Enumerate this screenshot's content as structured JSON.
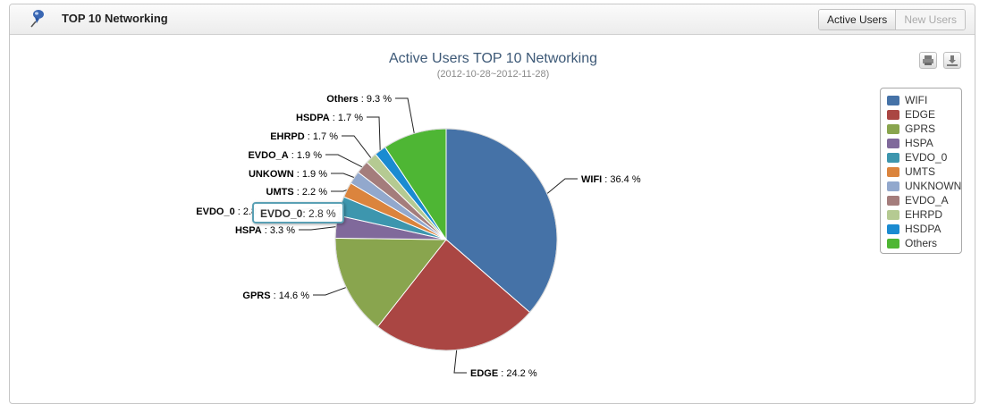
{
  "header": {
    "title": "TOP 10 Networking",
    "icon": "pushpin-icon"
  },
  "tabs": [
    {
      "label": "Active Users",
      "active": true
    },
    {
      "label": "New Users",
      "active": false
    }
  ],
  "toolbar": {
    "print_icon": "print-icon",
    "download_icon": "download-icon"
  },
  "chart_data": {
    "type": "pie",
    "title": "Active Users TOP 10 Networking",
    "subtitle": "(2012-10-28~2012-11-28)",
    "legend_position": "right",
    "slices": [
      {
        "name": "WIFI",
        "label": "WIFI",
        "value": 36.4,
        "color": "#4572a7"
      },
      {
        "name": "EDGE",
        "label": "EDGE",
        "value": 24.2,
        "color": "#aa4643"
      },
      {
        "name": "GPRS",
        "label": "GPRS",
        "value": 14.6,
        "color": "#89a54e"
      },
      {
        "name": "HSPA",
        "label": "HSPA",
        "value": 3.3,
        "color": "#80699b"
      },
      {
        "name": "EVDO_0",
        "label": "EVDO_0",
        "value": 2.8,
        "color": "#3d96ae"
      },
      {
        "name": "UMTS",
        "label": "UMTS",
        "value": 2.2,
        "color": "#db843d"
      },
      {
        "name": "UNKNOWN",
        "label": "UNKOWN",
        "value": 1.9,
        "color": "#92a8cd"
      },
      {
        "name": "EVDO_A",
        "label": "EVDO_A",
        "value": 1.9,
        "color": "#a47d7c"
      },
      {
        "name": "EHRPD",
        "label": "EHRPD",
        "value": 1.7,
        "color": "#b5ca92"
      },
      {
        "name": "HSDPA",
        "label": "HSDPA",
        "value": 1.7,
        "color": "#1a8bd1"
      },
      {
        "name": "Others",
        "label": "Others",
        "value": 9.3,
        "color": "#4eb634"
      }
    ],
    "tooltip": {
      "label": "EVDO_0",
      "value": 2.8
    }
  }
}
